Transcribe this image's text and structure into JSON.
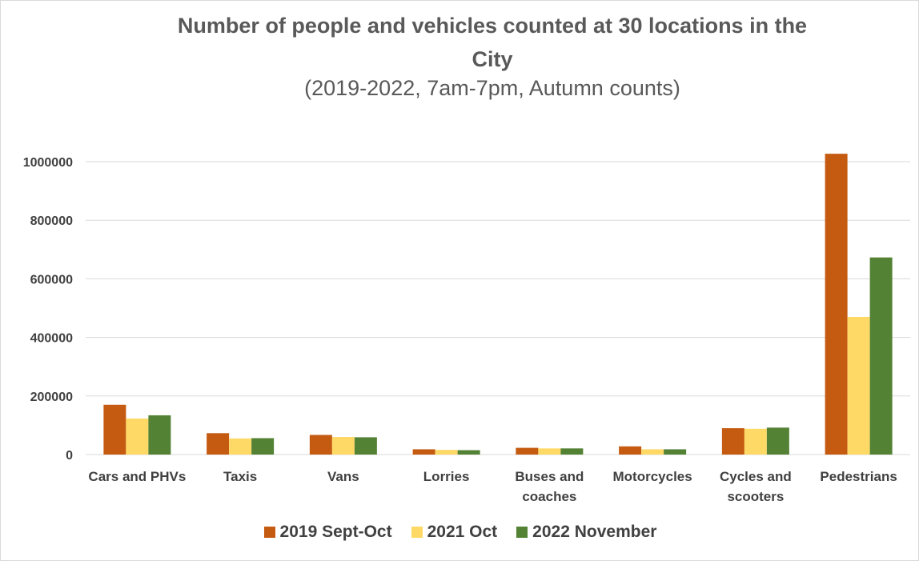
{
  "chart_data": {
    "type": "bar",
    "title_line1": "Number of people and vehicles counted at 30 locations in the",
    "title_line2": "City",
    "subtitle": "(2019-2022, 7am-7pm, Autumn counts)",
    "xlabel": "",
    "ylabel": "",
    "ylim": [
      0,
      1000000
    ],
    "yticks": [
      "0",
      "200000",
      "400000",
      "600000",
      "800000",
      "1000000"
    ],
    "grid": true,
    "legend_position": "bottom",
    "categories": [
      [
        "Cars and PHVs"
      ],
      [
        "Taxis"
      ],
      [
        "Vans"
      ],
      [
        "Lorries"
      ],
      [
        "Buses and",
        "coaches"
      ],
      [
        "Motorcycles"
      ],
      [
        "Cycles and",
        "scooters"
      ],
      [
        "Pedestrians"
      ]
    ],
    "series": [
      {
        "name": "2019 Sept-Oct",
        "color": "#c55a11",
        "values": [
          170000,
          73000,
          67000,
          18000,
          23000,
          28000,
          90000,
          1027000
        ]
      },
      {
        "name": "2021 Oct",
        "color": "#ffd966",
        "values": [
          123000,
          55000,
          60000,
          16000,
          21000,
          18000,
          88000,
          470000
        ]
      },
      {
        "name": "2022 November",
        "color": "#548235",
        "values": [
          134000,
          56000,
          59000,
          15000,
          21000,
          18000,
          92000,
          673000
        ]
      }
    ]
  }
}
